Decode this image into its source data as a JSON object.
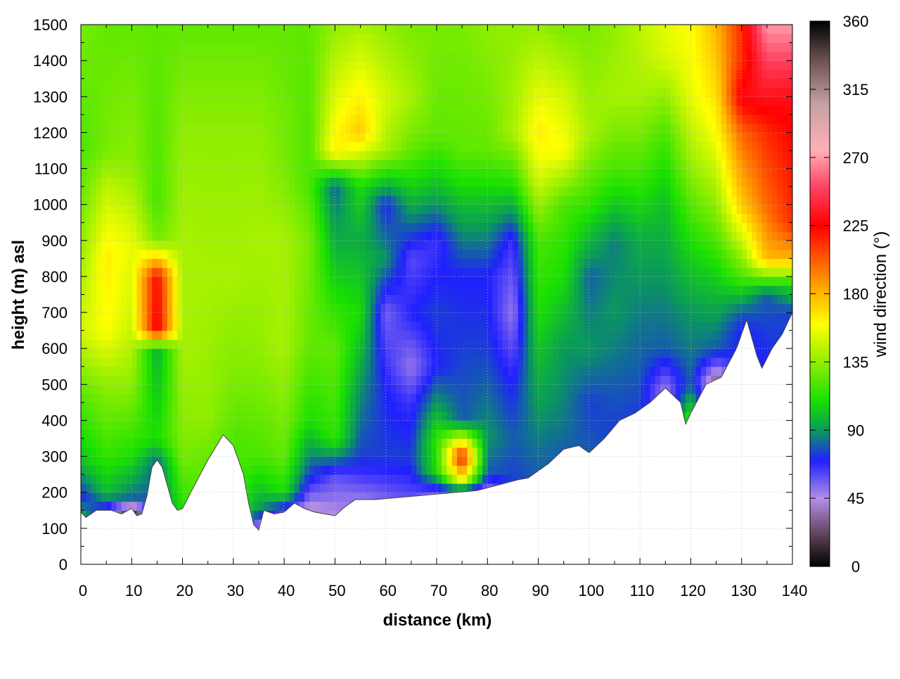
{
  "chart_data": {
    "type": "heatmap",
    "xlabel": "distance (km)",
    "ylabel": "height (m) asl",
    "colorbar_label": "wind direction (°)",
    "xlim": [
      0,
      140
    ],
    "ylim": [
      0,
      1500
    ],
    "x_ticks": [
      0,
      10,
      20,
      30,
      40,
      50,
      60,
      70,
      80,
      90,
      100,
      110,
      120,
      130,
      140
    ],
    "y_ticks": [
      0,
      100,
      200,
      300,
      400,
      500,
      600,
      700,
      800,
      900,
      1000,
      1100,
      1200,
      1300,
      1400,
      1500
    ],
    "colorbar_range": [
      0,
      360
    ],
    "colorbar_ticks": [
      0,
      45,
      90,
      135,
      180,
      225,
      270,
      315,
      360
    ],
    "grid": true,
    "colorscale": [
      {
        "value": 0,
        "color": "#000000"
      },
      {
        "value": 20,
        "color": "#5a3f55"
      },
      {
        "value": 45,
        "color": "#b58fe6"
      },
      {
        "value": 70,
        "color": "#2020ff"
      },
      {
        "value": 90,
        "color": "#0a9a5a"
      },
      {
        "value": 110,
        "color": "#19e000"
      },
      {
        "value": 135,
        "color": "#90ee00"
      },
      {
        "value": 160,
        "color": "#ffff00"
      },
      {
        "value": 185,
        "color": "#ffa500"
      },
      {
        "value": 225,
        "color": "#ff0000"
      },
      {
        "value": 250,
        "color": "#ff4060"
      },
      {
        "value": 275,
        "color": "#ffb0b8"
      },
      {
        "value": 305,
        "color": "#c6a2a2"
      },
      {
        "value": 335,
        "color": "#6a5050"
      },
      {
        "value": 360,
        "color": "#000000"
      }
    ],
    "terrain": [
      [
        0,
        145
      ],
      [
        1,
        130
      ],
      [
        3,
        150
      ],
      [
        6,
        150
      ],
      [
        8,
        140
      ],
      [
        10,
        155
      ],
      [
        11,
        135
      ],
      [
        12,
        140
      ],
      [
        13,
        190
      ],
      [
        14,
        270
      ],
      [
        15,
        290
      ],
      [
        16,
        270
      ],
      [
        17,
        220
      ],
      [
        18,
        170
      ],
      [
        19,
        150
      ],
      [
        20,
        155
      ],
      [
        22,
        210
      ],
      [
        25,
        290
      ],
      [
        28,
        360
      ],
      [
        30,
        330
      ],
      [
        32,
        250
      ],
      [
        33,
        170
      ],
      [
        34,
        110
      ],
      [
        35,
        95
      ],
      [
        36,
        150
      ],
      [
        38,
        140
      ],
      [
        40,
        145
      ],
      [
        42,
        170
      ],
      [
        44,
        155
      ],
      [
        46,
        145
      ],
      [
        48,
        140
      ],
      [
        50,
        135
      ],
      [
        52,
        160
      ],
      [
        54,
        180
      ],
      [
        58,
        180
      ],
      [
        62,
        185
      ],
      [
        66,
        190
      ],
      [
        70,
        195
      ],
      [
        74,
        200
      ],
      [
        78,
        205
      ],
      [
        82,
        220
      ],
      [
        86,
        235
      ],
      [
        88,
        240
      ],
      [
        92,
        280
      ],
      [
        95,
        320
      ],
      [
        98,
        330
      ],
      [
        100,
        310
      ],
      [
        103,
        350
      ],
      [
        106,
        400
      ],
      [
        109,
        420
      ],
      [
        112,
        450
      ],
      [
        115,
        490
      ],
      [
        118,
        450
      ],
      [
        119,
        390
      ],
      [
        120,
        420
      ],
      [
        123,
        500
      ],
      [
        126,
        520
      ],
      [
        129,
        600
      ],
      [
        131,
        680
      ],
      [
        133,
        580
      ],
      [
        134,
        545
      ],
      [
        136,
        600
      ],
      [
        138,
        640
      ],
      [
        140,
        700
      ]
    ],
    "field_columns": [
      {
        "x": 0,
        "h": [
          0,
          130,
          190,
          280,
          450,
          650,
          800,
          1050,
          1150,
          1500
        ],
        "v": [
          100,
          100,
          70,
          100,
          120,
          150,
          140,
          125,
          120,
          130
        ]
      },
      {
        "x": 5,
        "h": [
          0,
          145,
          200,
          300,
          500,
          650,
          850,
          1050,
          1150,
          1500
        ],
        "v": [
          60,
          60,
          100,
          115,
          135,
          160,
          165,
          145,
          130,
          125
        ]
      },
      {
        "x": 10,
        "h": [
          0,
          150,
          180,
          300,
          500,
          700,
          900,
          1100,
          1500
        ],
        "v": [
          10,
          10,
          80,
          110,
          135,
          150,
          155,
          135,
          125
        ]
      },
      {
        "x": 15,
        "h": [
          0,
          280,
          350,
          600,
          650,
          800,
          900,
          1000,
          1500
        ],
        "v": [
          80,
          80,
          110,
          95,
          230,
          225,
          130,
          120,
          125
        ]
      },
      {
        "x": 20,
        "h": [
          0,
          150,
          300,
          600,
          900,
          1200,
          1500
        ],
        "v": [
          110,
          110,
          130,
          140,
          140,
          135,
          125
        ]
      },
      {
        "x": 25,
        "h": [
          0,
          290,
          400,
          800,
          1200,
          1500
        ],
        "v": [
          125,
          125,
          135,
          140,
          135,
          125
        ]
      },
      {
        "x": 30,
        "h": [
          0,
          330,
          500,
          800,
          1200,
          1500
        ],
        "v": [
          120,
          120,
          130,
          140,
          135,
          125
        ]
      },
      {
        "x": 35,
        "h": [
          0,
          95,
          150,
          300,
          600,
          900,
          1200,
          1500
        ],
        "v": [
          30,
          30,
          90,
          120,
          135,
          140,
          135,
          125
        ]
      },
      {
        "x": 40,
        "h": [
          0,
          145,
          200,
          300,
          600,
          900,
          1100,
          1500
        ],
        "v": [
          60,
          60,
          110,
          125,
          140,
          140,
          130,
          125
        ]
      },
      {
        "x": 45,
        "h": [
          0,
          150,
          250,
          400,
          600,
          900,
          1050,
          1500
        ],
        "v": [
          40,
          40,
          75,
          110,
          125,
          130,
          120,
          125
        ]
      },
      {
        "x": 50,
        "h": [
          0,
          135,
          250,
          350,
          600,
          900,
          1050,
          1150,
          1500
        ],
        "v": [
          45,
          45,
          60,
          115,
          125,
          95,
          80,
          165,
          135
        ]
      },
      {
        "x": 55,
        "h": [
          0,
          180,
          300,
          500,
          700,
          900,
          1050,
          1200,
          1500
        ],
        "v": [
          50,
          50,
          75,
          90,
          110,
          95,
          110,
          175,
          140
        ]
      },
      {
        "x": 60,
        "h": [
          0,
          180,
          300,
          500,
          700,
          850,
          1000,
          1150,
          1300,
          1500
        ],
        "v": [
          55,
          55,
          75,
          70,
          55,
          90,
          70,
          140,
          150,
          135
        ]
      },
      {
        "x": 65,
        "h": [
          0,
          185,
          300,
          450,
          550,
          700,
          850,
          1000,
          1150,
          1300,
          1500
        ],
        "v": [
          60,
          60,
          75,
          65,
          50,
          70,
          60,
          95,
          125,
          140,
          130
        ]
      },
      {
        "x": 70,
        "h": [
          0,
          190,
          260,
          350,
          450,
          550,
          700,
          900,
          1050,
          1200,
          1500
        ],
        "v": [
          50,
          50,
          110,
          115,
          90,
          70,
          75,
          65,
          100,
          125,
          130
        ]
      },
      {
        "x": 75,
        "h": [
          0,
          195,
          240,
          300,
          400,
          600,
          800,
          1000,
          1150,
          1500
        ],
        "v": [
          55,
          55,
          170,
          225,
          80,
          75,
          70,
          100,
          125,
          130
        ]
      },
      {
        "x": 80,
        "h": [
          0,
          205,
          260,
          350,
          600,
          800,
          1000,
          1150,
          1500
        ],
        "v": [
          50,
          50,
          80,
          90,
          75,
          70,
          100,
          125,
          135
        ]
      },
      {
        "x": 85,
        "h": [
          0,
          230,
          350,
          500,
          700,
          900,
          1050,
          1200,
          1500
        ],
        "v": [
          75,
          75,
          80,
          70,
          50,
          65,
          110,
          140,
          135
        ]
      },
      {
        "x": 90,
        "h": [
          0,
          250,
          350,
          500,
          700,
          900,
          1100,
          1200,
          1500
        ],
        "v": [
          80,
          80,
          85,
          95,
          110,
          120,
          155,
          165,
          135
        ]
      },
      {
        "x": 95,
        "h": [
          0,
          320,
          400,
          600,
          800,
          1000,
          1150,
          1300,
          1500
        ],
        "v": [
          80,
          80,
          85,
          90,
          110,
          120,
          160,
          150,
          130
        ]
      },
      {
        "x": 100,
        "h": [
          0,
          310,
          450,
          600,
          800,
          1000,
          1200,
          1500
        ],
        "v": [
          80,
          80,
          75,
          90,
          80,
          115,
          140,
          130
        ]
      },
      {
        "x": 105,
        "h": [
          0,
          380,
          500,
          700,
          900,
          1100,
          1300,
          1500
        ],
        "v": [
          75,
          75,
          80,
          90,
          85,
          120,
          140,
          135
        ]
      },
      {
        "x": 110,
        "h": [
          0,
          430,
          550,
          700,
          900,
          1100,
          1300,
          1500
        ],
        "v": [
          75,
          75,
          80,
          85,
          95,
          120,
          140,
          145
        ]
      },
      {
        "x": 115,
        "h": [
          0,
          490,
          600,
          800,
          1000,
          1200,
          1400,
          1500
        ],
        "v": [
          50,
          50,
          80,
          90,
          100,
          120,
          150,
          155
        ]
      },
      {
        "x": 120,
        "h": [
          0,
          400,
          500,
          700,
          900,
          1100,
          1300,
          1500
        ],
        "v": [
          120,
          120,
          80,
          90,
          110,
          135,
          155,
          160
        ]
      },
      {
        "x": 125,
        "h": [
          0,
          510,
          600,
          800,
          1000,
          1200,
          1400,
          1500
        ],
        "v": [
          30,
          30,
          80,
          105,
          135,
          160,
          175,
          180
        ]
      },
      {
        "x": 130,
        "h": [
          0,
          650,
          700,
          800,
          1000,
          1200,
          1300,
          1400,
          1500
        ],
        "v": [
          70,
          70,
          80,
          120,
          175,
          200,
          230,
          215,
          215
        ]
      },
      {
        "x": 135,
        "h": [
          0,
          560,
          650,
          750,
          850,
          1000,
          1200,
          1400,
          1500
        ],
        "v": [
          70,
          70,
          75,
          80,
          180,
          200,
          215,
          250,
          270
        ]
      },
      {
        "x": 140,
        "h": [
          0,
          700,
          780,
          850,
          950,
          1100,
          1300,
          1500
        ],
        "v": [
          75,
          75,
          110,
          180,
          215,
          220,
          230,
          270
        ]
      }
    ]
  }
}
